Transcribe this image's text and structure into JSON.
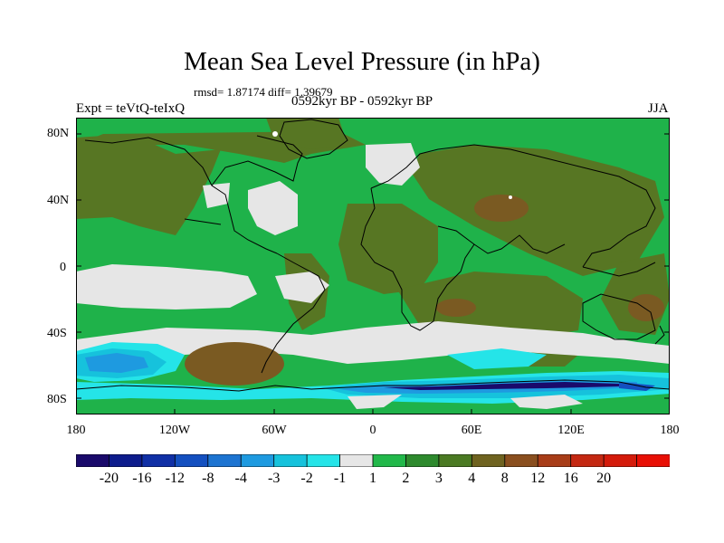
{
  "title": "Mean Sea Level Pressure (in hPa)",
  "stats": "rmsd= 1.87174 diff= 1.39679",
  "experiment": "Expt = teVtQ-teIxQ",
  "period": "0592kyr BP - 0592kyr BP",
  "season": "JJA",
  "lat_labels": [
    "80N",
    "40N",
    "0",
    "40S",
    "80S"
  ],
  "lon_labels": [
    "180",
    "120W",
    "60W",
    "0",
    "60E",
    "120E",
    "180"
  ],
  "colorbar": {
    "colors": [
      "#1a0a6b",
      "#0d1c8c",
      "#1030a6",
      "#1450c0",
      "#1d74d1",
      "#1e9ae0",
      "#16c2dc",
      "#25e4e8",
      "#e6e6e6",
      "#22b84a",
      "#2e8a2e",
      "#4b7a23",
      "#6f6320",
      "#8a4f1f",
      "#a83d18",
      "#c42812",
      "#d41b0b",
      "#e80f05"
    ],
    "labels": [
      "-20",
      "-16",
      "-12",
      "-8",
      "-4",
      "-3",
      "-2",
      "-1",
      "1",
      "2",
      "3",
      "4",
      "8",
      "12",
      "16",
      "20"
    ]
  },
  "map": {
    "background_color": "#1fb24a",
    "palette": {
      "grey": "#e6e6e6",
      "olive": "#577623",
      "dark_green": "#2e8a2e",
      "brown": "#7a5a22",
      "cyan_light": "#25e4e8",
      "cyan": "#16c2dc",
      "blue": "#1e9ae0",
      "blue_dark": "#1450c0",
      "navy": "#1a0a6b",
      "white": "#ffffff"
    }
  }
}
